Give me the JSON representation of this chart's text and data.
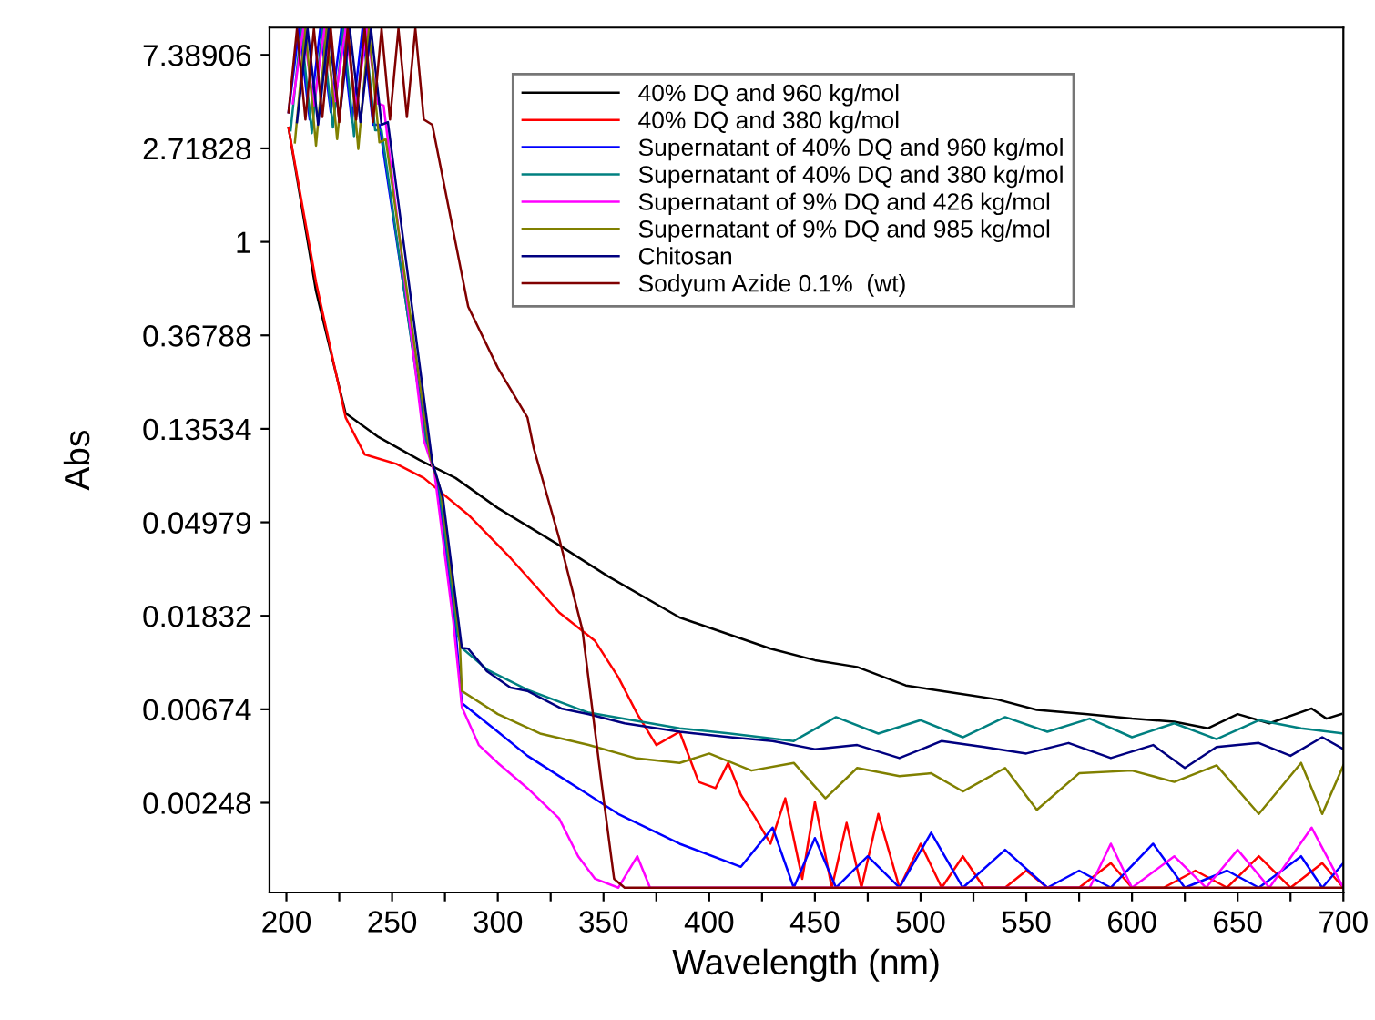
{
  "chart_data": {
    "type": "line",
    "xlabel": "Wavelength (nm)",
    "ylabel": "Abs",
    "log": true,
    "legend": "top right",
    "grid": false,
    "line_style": "solid",
    "xlim": [
      192,
      700
    ],
    "ylim": [
      0.00095,
      9.9
    ],
    "xticks": [
      200,
      {
        "value": 225,
        "label": null
      },
      250,
      {
        "value": 275,
        "label": null
      },
      300,
      {
        "value": 325,
        "label": null
      },
      350,
      {
        "value": 375,
        "label": null
      },
      400,
      {
        "value": 425,
        "label": null
      },
      450,
      {
        "value": 475,
        "label": null
      },
      500,
      {
        "value": 525,
        "label": null
      },
      550,
      {
        "value": 575,
        "label": null
      },
      600,
      {
        "value": 625,
        "label": null
      },
      650,
      {
        "value": 675,
        "label": null
      },
      700
    ],
    "yticks": [
      0.00248,
      0.00674,
      0.01832,
      0.04979,
      0.13534,
      0.36788,
      1,
      2.71828,
      7.38906
    ],
    "series": [
      {
        "name": "40% DQ and 960 kg/mol",
        "color": "#000000",
        "x": [
          201,
          214,
          228,
          243,
          263,
          280,
          300,
          329,
          352,
          386,
          429,
          450,
          470,
          493,
          510,
          536,
          555,
          579,
          600,
          620,
          636,
          650,
          665,
          685,
          692,
          699
        ],
        "values": [
          3.39,
          0.59,
          0.16,
          0.125,
          0.097,
          0.08,
          0.058,
          0.039,
          0.028,
          0.018,
          0.0129,
          0.0114,
          0.0106,
          0.0087,
          0.0082,
          0.0075,
          0.0067,
          0.0064,
          0.0061,
          0.0059,
          0.0055,
          0.0064,
          0.0058,
          0.0068,
          0.0061,
          0.0064
        ]
      },
      {
        "name": "40% DQ and 380 kg/mol",
        "color": "#ff0000",
        "x": [
          201,
          214,
          228,
          237,
          252,
          265,
          286,
          306,
          329,
          346,
          357,
          366,
          375,
          386,
          395,
          403,
          409,
          415,
          422,
          429,
          436,
          444,
          450,
          458,
          465,
          472,
          480,
          490,
          500,
          510,
          520,
          530,
          540,
          550,
          560,
          575,
          590,
          600,
          615,
          630,
          645,
          660,
          675,
          690,
          700
        ],
        "values": [
          3.39,
          0.65,
          0.153,
          0.103,
          0.093,
          0.08,
          0.054,
          0.034,
          0.019,
          0.014,
          0.0095,
          0.0064,
          0.0046,
          0.0053,
          0.0031,
          0.0029,
          0.0038,
          0.0027,
          0.0021,
          0.0016,
          0.0026,
          0.0011,
          0.0025,
          0.001,
          0.002,
          0.001,
          0.0022,
          0.001,
          0.0016,
          0.001,
          0.0014,
          0.001,
          0.001,
          0.0012,
          0.001,
          0.001,
          0.0013,
          0.001,
          0.001,
          0.0012,
          0.001,
          0.0014,
          0.001,
          0.0013,
          0.001
        ]
      },
      {
        "name": "Supernatant of 40% DQ and 960 kg/mol",
        "color": "#0000ff",
        "x": [
          201,
          206,
          211,
          216,
          221,
          226,
          231,
          236,
          241,
          244,
          267,
          271,
          280,
          283,
          300,
          314,
          329,
          343,
          357,
          386,
          415,
          430,
          440,
          450,
          460,
          475,
          490,
          505,
          520,
          540,
          560,
          575,
          590,
          610,
          625,
          645,
          660,
          680,
          690,
          700
        ],
        "values": [
          4.0,
          9.8,
          3.7,
          9.8,
          4.0,
          9.8,
          3.6,
          9.8,
          3.5,
          3.5,
          0.107,
          0.08,
          0.0158,
          0.0072,
          0.0053,
          0.0041,
          0.0033,
          0.0027,
          0.0022,
          0.0016,
          0.00125,
          0.0019,
          0.001,
          0.0017,
          0.001,
          0.0014,
          0.001,
          0.0018,
          0.001,
          0.0015,
          0.001,
          0.0012,
          0.001,
          0.0016,
          0.001,
          0.0012,
          0.001,
          0.0014,
          0.001,
          0.0013
        ]
      },
      {
        "name": "Supernatant of 40% DQ and 380 kg/mol",
        "color": "#008080",
        "x": [
          202,
          207,
          212,
          217,
          222,
          227,
          232,
          237,
          242,
          245,
          266,
          272,
          281,
          283,
          295,
          314,
          343,
          386,
          410,
          440,
          460,
          480,
          500,
          520,
          540,
          560,
          580,
          600,
          620,
          640,
          660,
          680,
          700
        ],
        "values": [
          3.3,
          9.8,
          3.2,
          9.8,
          3.4,
          9.8,
          3.1,
          9.8,
          3.3,
          3.3,
          0.115,
          0.075,
          0.015,
          0.013,
          0.0103,
          0.0083,
          0.0065,
          0.0055,
          0.0052,
          0.0048,
          0.0062,
          0.0052,
          0.006,
          0.005,
          0.0062,
          0.0053,
          0.0061,
          0.005,
          0.0058,
          0.0049,
          0.006,
          0.0055,
          0.0052
        ]
      },
      {
        "name": "Supernatant of 9% DQ and 426 kg/mol",
        "color": "#ff00ff",
        "x": [
          203,
          208,
          213,
          218,
          223,
          228,
          233,
          238,
          243,
          246,
          265,
          270,
          279,
          283,
          291,
          300,
          314,
          329,
          338,
          346,
          357,
          366,
          372,
          580,
          590,
          600,
          620,
          635,
          650,
          665,
          685,
          700
        ],
        "values": [
          4.4,
          9.8,
          4.3,
          9.8,
          4.5,
          9.8,
          4.2,
          9.8,
          4.4,
          4.3,
          0.12,
          0.085,
          0.017,
          0.0069,
          0.0046,
          0.0038,
          0.0029,
          0.0021,
          0.0014,
          0.0011,
          0.001,
          0.0014,
          0.001,
          0.001,
          0.0016,
          0.001,
          0.0014,
          0.001,
          0.0015,
          0.001,
          0.0019,
          0.001
        ]
      },
      {
        "name": "Supernatant of 9% DQ and 985 kg/mol",
        "color": "#808000",
        "x": [
          204,
          209,
          214,
          219,
          224,
          229,
          234,
          239,
          244,
          247,
          268,
          273,
          282,
          283,
          300,
          320,
          343,
          365,
          386,
          400,
          420,
          440,
          455,
          470,
          490,
          505,
          520,
          540,
          555,
          575,
          600,
          620,
          640,
          660,
          680,
          690,
          700
        ],
        "values": [
          2.9,
          9.8,
          2.8,
          9.8,
          3.0,
          9.8,
          2.7,
          9.8,
          2.9,
          3.0,
          0.1,
          0.07,
          0.014,
          0.0082,
          0.0064,
          0.0052,
          0.0046,
          0.004,
          0.0038,
          0.0042,
          0.0035,
          0.0038,
          0.0026,
          0.0036,
          0.0033,
          0.0034,
          0.0028,
          0.0036,
          0.0023,
          0.0034,
          0.0035,
          0.0031,
          0.0037,
          0.0022,
          0.0038,
          0.0022,
          0.0037
        ]
      },
      {
        "name": "Chitosan",
        "color": "#000080",
        "x": [
          205,
          210,
          215,
          220,
          225,
          230,
          235,
          240,
          245,
          248,
          269,
          274,
          283,
          286,
          295,
          306,
          314,
          330,
          343,
          360,
          386,
          410,
          430,
          450,
          470,
          490,
          510,
          530,
          550,
          570,
          590,
          610,
          625,
          640,
          660,
          675,
          690,
          700
        ],
        "values": [
          3.6,
          9.8,
          3.5,
          9.8,
          3.7,
          9.8,
          3.6,
          9.8,
          3.5,
          3.6,
          0.095,
          0.065,
          0.013,
          0.0129,
          0.0101,
          0.0085,
          0.0082,
          0.0068,
          0.0064,
          0.0058,
          0.0053,
          0.005,
          0.0048,
          0.0044,
          0.0046,
          0.004,
          0.0048,
          0.0045,
          0.0042,
          0.0047,
          0.004,
          0.0046,
          0.0036,
          0.0045,
          0.0047,
          0.0041,
          0.005,
          0.0044
        ]
      },
      {
        "name": "Sodyum Azide 0.1%  (wt)",
        "color": "#800000",
        "x": [
          201,
          205,
          209,
          213,
          217,
          221,
          225,
          229,
          233,
          237,
          241,
          245,
          249,
          253,
          257,
          261,
          265,
          269,
          286,
          300,
          314,
          317,
          329,
          340,
          349,
          355,
          360,
          400,
          500,
          600,
          700
        ],
        "values": [
          4.0,
          9.8,
          3.7,
          9.8,
          3.8,
          9.8,
          3.6,
          9.8,
          3.7,
          9.8,
          3.6,
          9.8,
          3.7,
          9.8,
          3.8,
          9.8,
          3.7,
          3.5,
          0.5,
          0.26,
          0.153,
          0.11,
          0.042,
          0.0158,
          0.0031,
          0.0011,
          0.001,
          0.001,
          0.001,
          0.001,
          0.001
        ]
      }
    ]
  }
}
